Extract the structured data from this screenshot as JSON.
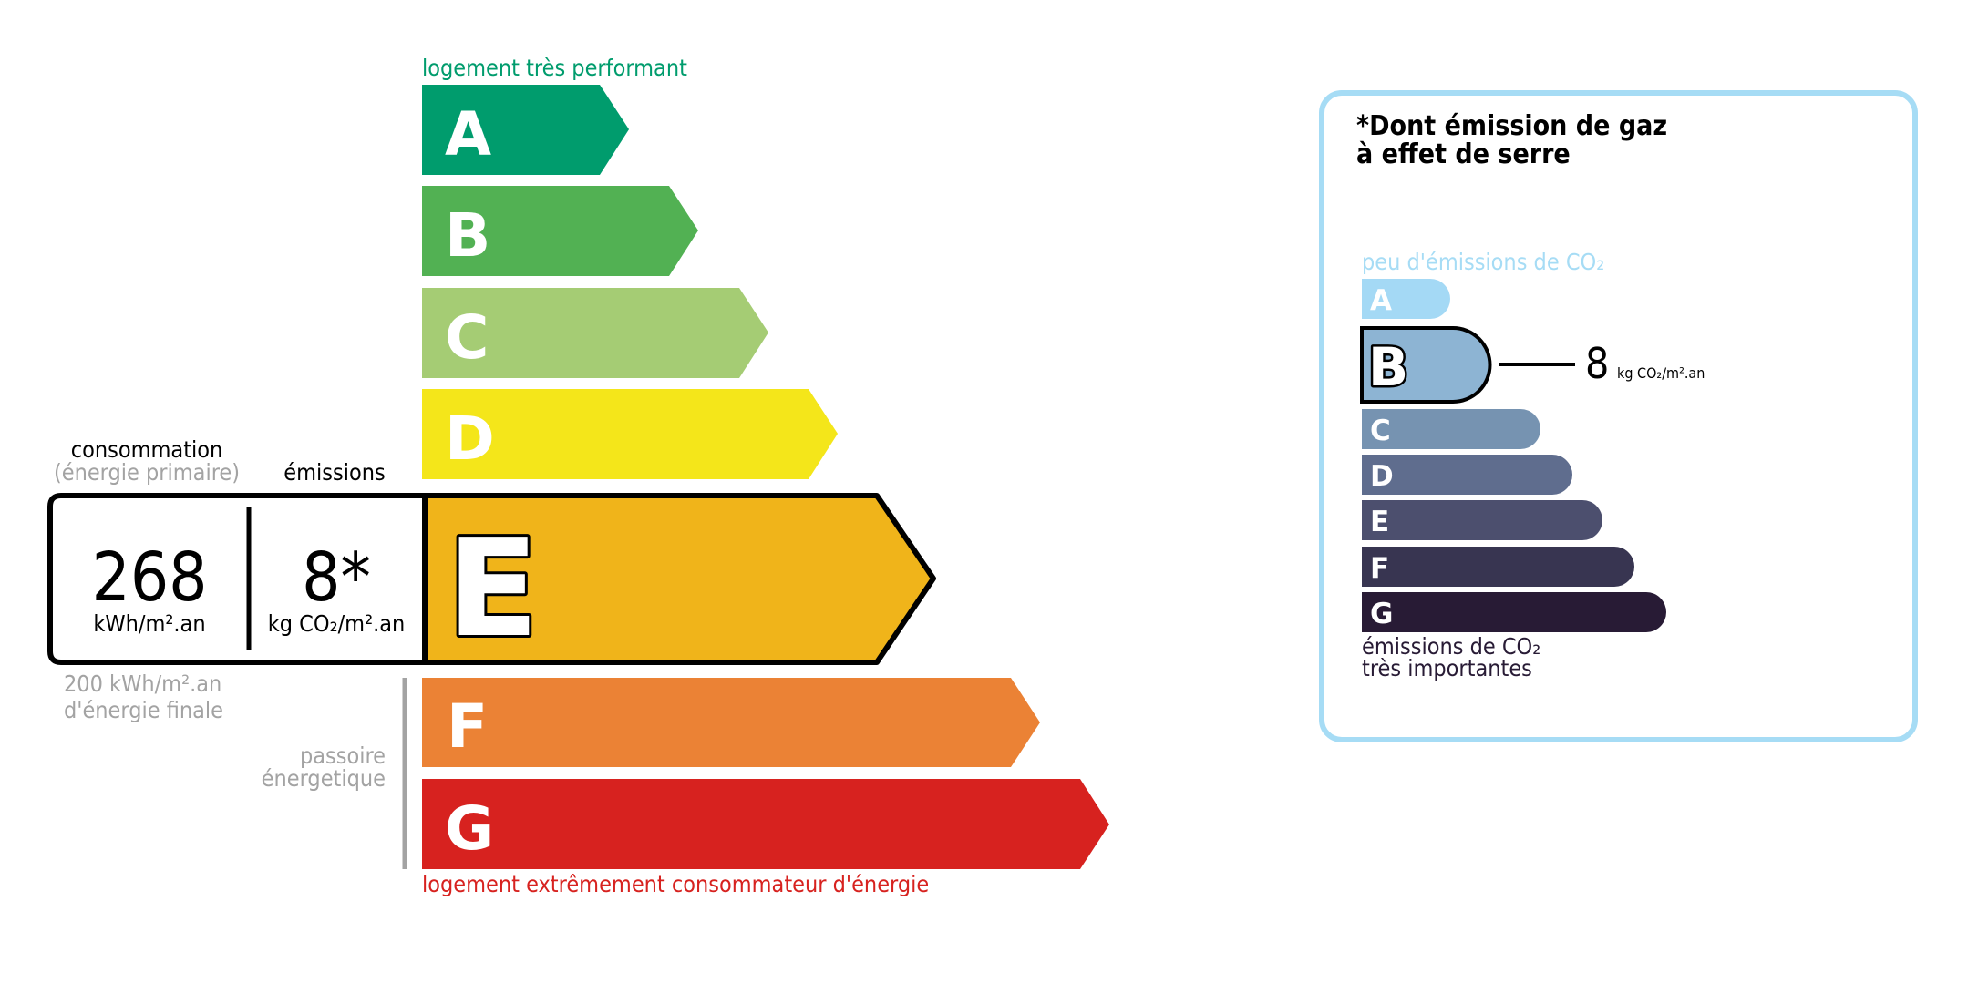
{
  "energy": {
    "top_label": "logement très performant",
    "bottom_label": "logement extrêmement consommateur d'énergie",
    "classes": [
      {
        "letter": "A",
        "color": "#009c6d"
      },
      {
        "letter": "B",
        "color": "#52b153"
      },
      {
        "letter": "C",
        "color": "#a5cc74"
      },
      {
        "letter": "D",
        "color": "#f4e61a"
      },
      {
        "letter": "E",
        "color": "#f0b41a"
      },
      {
        "letter": "F",
        "color": "#eb8235"
      },
      {
        "letter": "G",
        "color": "#d7221f"
      }
    ],
    "current_class": "E",
    "consumption_label": "consommation",
    "consumption_sub": "(énergie primaire)",
    "emissions_label": "émissions",
    "consumption_value": "268",
    "consumption_unit": "kWh/m².an",
    "emissions_value": "8*",
    "emissions_unit": "kg CO₂/m².an",
    "final_energy_line1": "200 kWh/m².an",
    "final_energy_line2": "d'énergie finale",
    "passoire_line1": "passoire",
    "passoire_line2": "énergetique"
  },
  "ghg": {
    "title_line1": "*Dont émission de gaz",
    "title_line2": "à effet de serre",
    "top_label": "peu d'émissions de CO₂",
    "bottom_line1": "émissions de CO₂",
    "bottom_line2": "très importantes",
    "border_color": "#a6dcf5",
    "classes": [
      {
        "letter": "A",
        "color": "#a4d9f5"
      },
      {
        "letter": "B",
        "color": "#8db4d3"
      },
      {
        "letter": "C",
        "color": "#7693b1"
      },
      {
        "letter": "D",
        "color": "#5f6d8e"
      },
      {
        "letter": "E",
        "color": "#4c4f6e"
      },
      {
        "letter": "F",
        "color": "#383551"
      },
      {
        "letter": "G",
        "color": "#281b35"
      }
    ],
    "current_class": "B",
    "value": "8",
    "unit": "kg CO₂/m².an"
  }
}
